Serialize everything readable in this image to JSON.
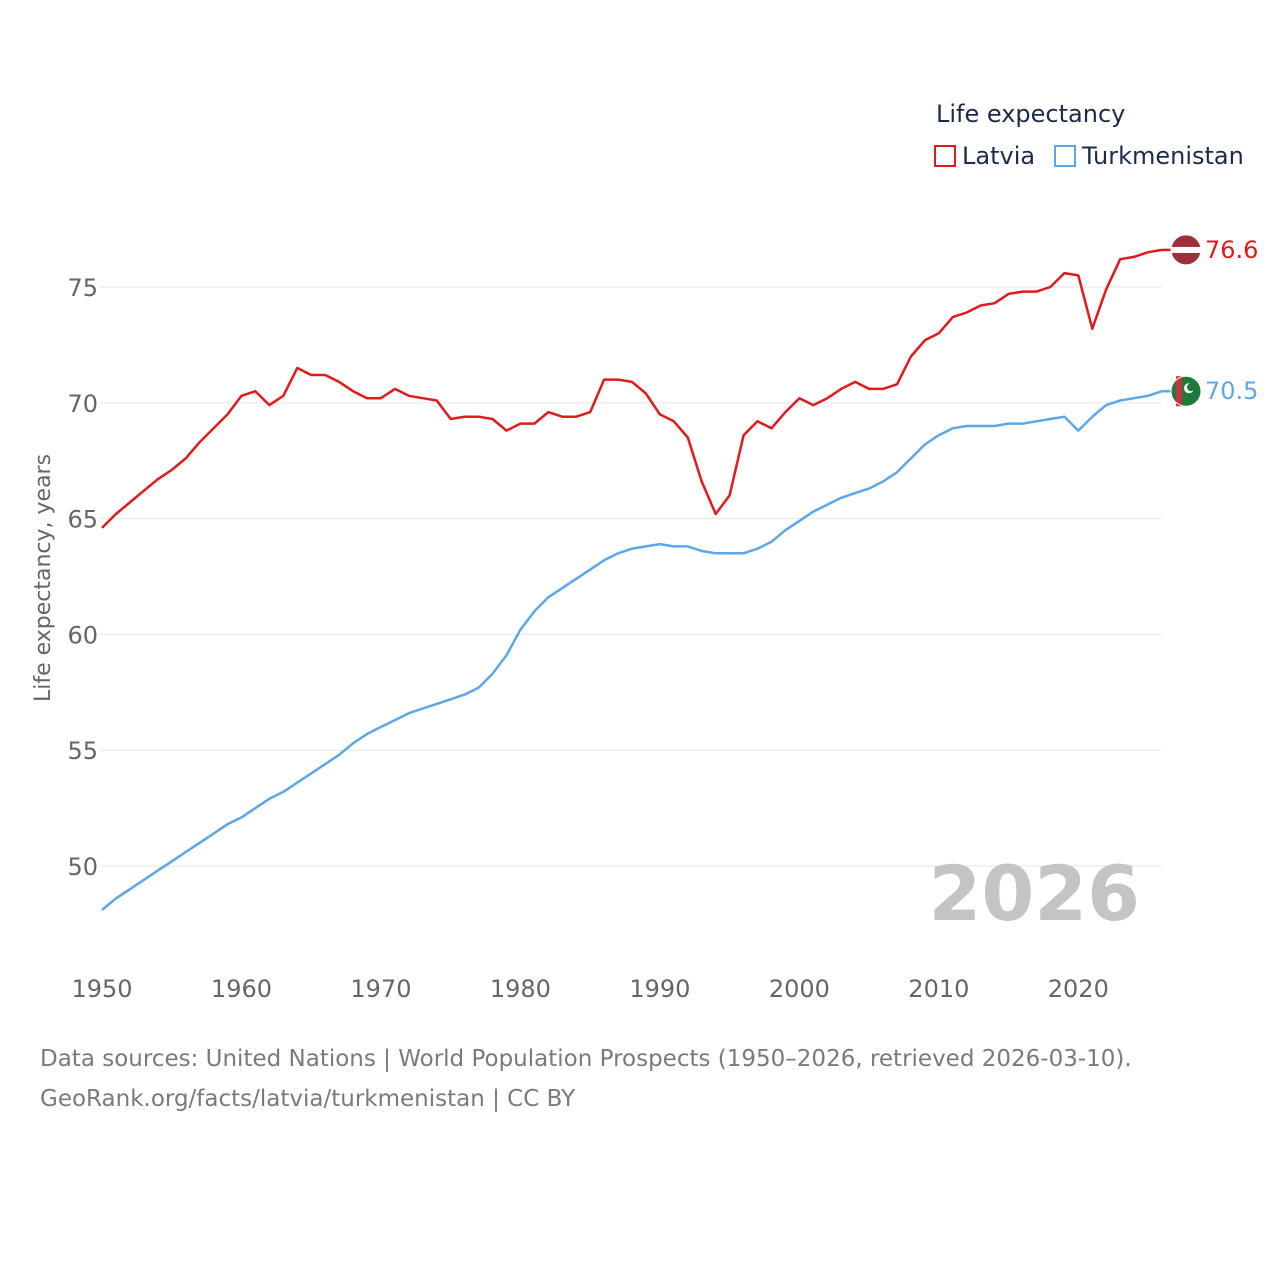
{
  "legend": {
    "title": "Life expectancy",
    "items": [
      {
        "label": "Latvia",
        "color": "#e31a1c"
      },
      {
        "label": "Turkmenistan",
        "color": "#5ca7e8"
      }
    ]
  },
  "footer": {
    "source": "Data sources: United Nations | World Population Prospects (1950–2026, retrieved 2026-03-10).",
    "credit": "GeoRank.org/facts/latvia/turkmenistan | CC BY"
  },
  "chart_data": {
    "type": "line",
    "title": "Life expectancy",
    "ylabel": "Life expectancy, years",
    "xlabel": "",
    "year_label": "2026",
    "xlim": [
      1950,
      2026
    ],
    "ylim": [
      47,
      78
    ],
    "yticks": [
      50,
      55,
      60,
      65,
      70,
      75
    ],
    "xticks": [
      1950,
      1960,
      1970,
      1980,
      1990,
      2000,
      2010,
      2020
    ],
    "x": [
      1950,
      1951,
      1952,
      1953,
      1954,
      1955,
      1956,
      1957,
      1958,
      1959,
      1960,
      1961,
      1962,
      1963,
      1964,
      1965,
      1966,
      1967,
      1968,
      1969,
      1970,
      1971,
      1972,
      1973,
      1974,
      1975,
      1976,
      1977,
      1978,
      1979,
      1980,
      1981,
      1982,
      1983,
      1984,
      1985,
      1986,
      1987,
      1988,
      1989,
      1990,
      1991,
      1992,
      1993,
      1994,
      1995,
      1996,
      1997,
      1998,
      1999,
      2000,
      2001,
      2002,
      2003,
      2004,
      2005,
      2006,
      2007,
      2008,
      2009,
      2010,
      2011,
      2012,
      2013,
      2014,
      2015,
      2016,
      2017,
      2018,
      2019,
      2020,
      2021,
      2022,
      2023,
      2024,
      2025,
      2026
    ],
    "series": [
      {
        "name": "Latvia",
        "color": "#e31a1c",
        "end_label": "76.6",
        "flag": "latvia-flag",
        "values": [
          64.6,
          65.2,
          65.7,
          66.2,
          66.7,
          67.1,
          67.6,
          68.3,
          68.9,
          69.5,
          70.3,
          70.5,
          69.9,
          70.3,
          71.5,
          71.2,
          71.2,
          70.9,
          70.5,
          70.2,
          70.2,
          70.6,
          70.3,
          70.2,
          70.1,
          69.3,
          69.4,
          69.4,
          69.3,
          68.8,
          69.1,
          69.1,
          69.6,
          69.4,
          69.4,
          69.6,
          71.0,
          71.0,
          70.9,
          70.4,
          69.5,
          69.2,
          68.5,
          66.6,
          65.2,
          66.0,
          68.6,
          69.2,
          68.9,
          69.6,
          70.2,
          69.9,
          70.2,
          70.6,
          70.9,
          70.6,
          70.6,
          70.8,
          72.0,
          72.7,
          73.0,
          73.7,
          73.9,
          74.2,
          74.3,
          74.7,
          74.8,
          74.8,
          75.0,
          75.6,
          75.5,
          73.2,
          74.9,
          76.2,
          76.3,
          76.5,
          76.6
        ]
      },
      {
        "name": "Turkmenistan",
        "color": "#5ca7e8",
        "end_label": "70.5",
        "flag": "turkmenistan-flag",
        "values": [
          48.1,
          48.6,
          49.0,
          49.4,
          49.8,
          50.2,
          50.6,
          51.0,
          51.4,
          51.8,
          52.1,
          52.5,
          52.9,
          53.2,
          53.6,
          54.0,
          54.4,
          54.8,
          55.3,
          55.7,
          56.0,
          56.3,
          56.6,
          56.8,
          57.0,
          57.2,
          57.4,
          57.7,
          58.3,
          59.1,
          60.2,
          61.0,
          61.6,
          62.0,
          62.4,
          62.8,
          63.2,
          63.5,
          63.7,
          63.8,
          63.9,
          63.8,
          63.8,
          63.6,
          63.5,
          63.5,
          63.5,
          63.7,
          64.0,
          64.5,
          64.9,
          65.3,
          65.6,
          65.9,
          66.1,
          66.3,
          66.6,
          67.0,
          67.6,
          68.2,
          68.6,
          68.9,
          69.0,
          69.0,
          69.0,
          69.1,
          69.1,
          69.2,
          69.3,
          69.4,
          68.8,
          69.4,
          69.9,
          70.1,
          70.2,
          70.3,
          70.5
        ]
      }
    ]
  }
}
